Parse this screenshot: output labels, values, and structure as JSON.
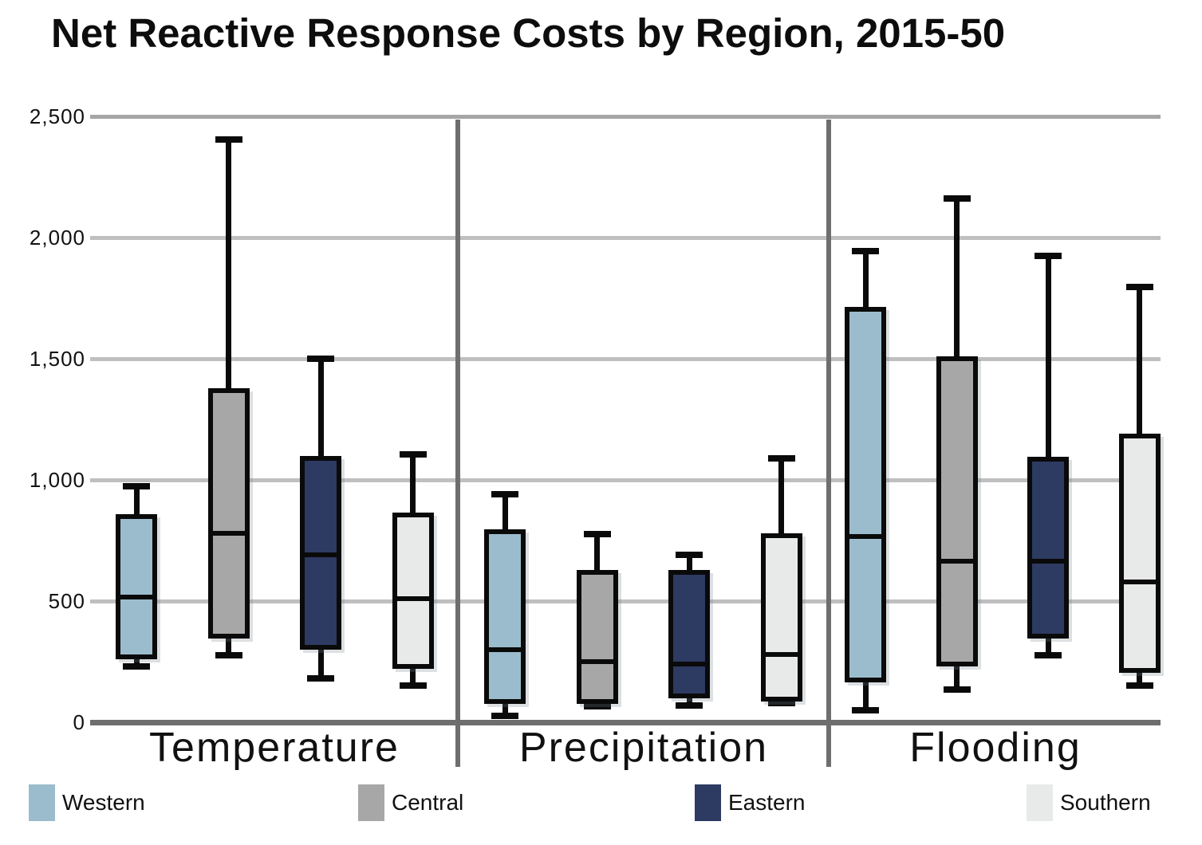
{
  "chart_data": {
    "type": "boxplot",
    "title": "Net Reactive Response Costs by Region, 2015-50",
    "categories": [
      "Temperature",
      "Precipitation",
      "Flooding"
    ],
    "series": [
      {
        "name": "Western",
        "color": "#9bbccd",
        "values": [
          {
            "min": 230,
            "q1": 270,
            "median": 515,
            "q3": 850,
            "max": 975
          },
          {
            "min": 25,
            "q1": 85,
            "median": 300,
            "q3": 785,
            "max": 940
          },
          {
            "min": 50,
            "q1": 175,
            "median": 765,
            "q3": 1705,
            "max": 1945
          }
        ]
      },
      {
        "name": "Central",
        "color": "#a7a7a7",
        "values": [
          {
            "min": 275,
            "q1": 355,
            "median": 780,
            "q3": 1370,
            "max": 2405
          },
          {
            "min": 65,
            "q1": 85,
            "median": 250,
            "q3": 620,
            "max": 775
          },
          {
            "min": 135,
            "q1": 240,
            "median": 665,
            "q3": 1500,
            "max": 2160
          }
        ]
      },
      {
        "name": "Eastern",
        "color": "#2d3a62",
        "values": [
          {
            "min": 180,
            "q1": 310,
            "median": 690,
            "q3": 1090,
            "max": 1500
          },
          {
            "min": 70,
            "q1": 110,
            "median": 240,
            "q3": 620,
            "max": 690
          },
          {
            "min": 275,
            "q1": 355,
            "median": 665,
            "q3": 1085,
            "max": 1925
          }
        ]
      },
      {
        "name": "Southern",
        "color": "#e8e9e9",
        "values": [
          {
            "min": 150,
            "q1": 230,
            "median": 510,
            "q3": 855,
            "max": 1105
          },
          {
            "min": 80,
            "q1": 95,
            "median": 280,
            "q3": 770,
            "max": 1090
          },
          {
            "min": 150,
            "q1": 215,
            "median": 580,
            "q3": 1180,
            "max": 1795
          }
        ]
      }
    ],
    "ylim": [
      0,
      2500
    ],
    "yticks": [
      {
        "value": 0,
        "label": "0"
      },
      {
        "value": 500,
        "label": "500"
      },
      {
        "value": 1000,
        "label": "1,000"
      },
      {
        "value": 1500,
        "label": "1,500"
      },
      {
        "value": 2000,
        "label": "2,000"
      },
      {
        "value": 2500,
        "label": "2,500"
      }
    ],
    "grid": true,
    "legend_position": "bottom"
  },
  "colors": {
    "gridline": "#bfbfbf",
    "top_gridline": "#a6a6a6",
    "zero_axis": "#6e6e6e",
    "group_separator": "#6e6e6e",
    "box_outline": "#0a0a0a",
    "text": "#111111"
  }
}
